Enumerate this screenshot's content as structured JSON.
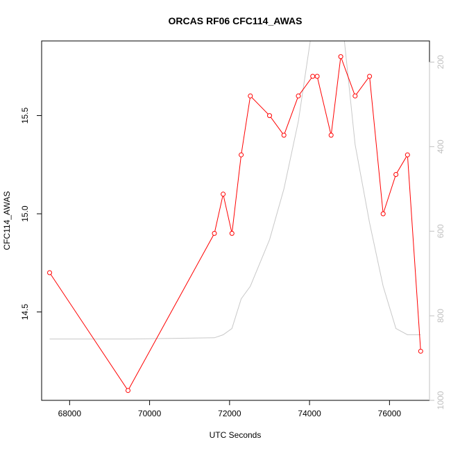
{
  "chart_data": {
    "type": "line",
    "title": "ORCAS RF06 CFC114_AWAS",
    "xlabel": "UTC Seconds",
    "ylabel": "CFC114_AWAS",
    "xlim": [
      67300,
      77000
    ],
    "ylim": [
      14.05,
      15.88
    ],
    "x_ticks": [
      68000,
      70000,
      72000,
      74000,
      76000
    ],
    "y_ticks": [
      14.5,
      15.0,
      15.5
    ],
    "y_tick_labels": [
      "14.5",
      "15.0",
      "15.5"
    ],
    "y2_lim": [
      1000,
      150
    ],
    "y2_ticks": [
      200,
      400,
      600,
      800,
      1000
    ],
    "series": [
      {
        "color": "#ff0000",
        "markers": "open-circle",
        "x": [
          67500,
          69460,
          71620,
          71840,
          72060,
          72290,
          72520,
          73000,
          73360,
          73720,
          74080,
          74190,
          74540,
          74780,
          75140,
          75500,
          75840,
          76160,
          76450,
          76780
        ],
        "y": [
          14.7,
          14.1,
          14.9,
          15.1,
          14.9,
          15.3,
          15.6,
          15.5,
          15.4,
          15.6,
          15.7,
          15.7,
          15.4,
          15.8,
          15.6,
          15.7,
          15.0,
          15.2,
          15.3,
          14.3
        ]
      },
      {
        "axis": "right",
        "color": "#c8c8c8",
        "x": [
          67500,
          69500,
          71620,
          71840,
          72060,
          72290,
          72520,
          73000,
          73360,
          73720,
          74050,
          74300,
          74600,
          74850,
          75140,
          75500,
          75840,
          76160,
          76450,
          76780
        ],
        "y": [
          855,
          855,
          852,
          845,
          830,
          760,
          730,
          620,
          500,
          340,
          130,
          130,
          130,
          130,
          395,
          580,
          730,
          830,
          845,
          845
        ]
      }
    ]
  }
}
